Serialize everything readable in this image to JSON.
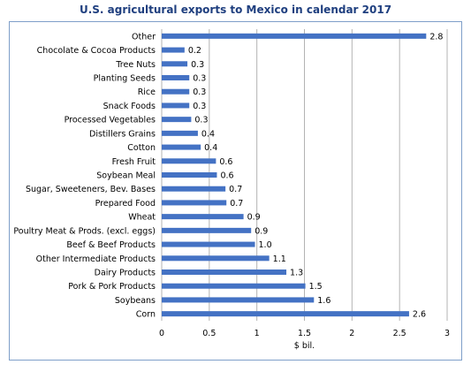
{
  "chart_data": {
    "type": "bar",
    "orientation": "horizontal",
    "title": "U.S. agricultural exports to Mexico in calendar 2017",
    "xlabel": "$ bil.",
    "ylabel": "",
    "xlim": [
      0,
      3
    ],
    "x_ticks": [
      "0",
      "0.5",
      "1",
      "1.5",
      "2",
      "2.5",
      "3"
    ],
    "grid": "vertical",
    "bar_color": "#4472c4",
    "categories": [
      "Other",
      "Chocolate & Cocoa Products",
      "Tree Nuts",
      "Planting Seeds",
      "Rice",
      "Snack Foods",
      "Processed Vegetables",
      "Distillers Grains",
      "Cotton",
      "Fresh Fruit",
      "Soybean Meal",
      "Sugar, Sweeteners, Bev. Bases",
      "Prepared Food",
      "Wheat",
      "Poultry Meat & Prods. (excl. eggs)",
      "Beef & Beef Products",
      "Other Intermediate Products",
      "Dairy Products",
      "Pork & Pork Products",
      "Soybeans",
      "Corn"
    ],
    "values": [
      2.78,
      0.24,
      0.27,
      0.29,
      0.29,
      0.29,
      0.31,
      0.38,
      0.41,
      0.57,
      0.58,
      0.67,
      0.68,
      0.86,
      0.94,
      0.98,
      1.13,
      1.31,
      1.51,
      1.6,
      2.6
    ],
    "labels": [
      "2.8",
      "0.2",
      "0.3",
      "0.3",
      "0.3",
      "0.3",
      "0.3",
      "0.4",
      "0.4",
      "0.6",
      "0.6",
      "0.7",
      "0.7",
      "0.9",
      "0.9",
      "1.0",
      "1.1",
      "1.3",
      "1.5",
      "1.6",
      "2.6"
    ]
  }
}
